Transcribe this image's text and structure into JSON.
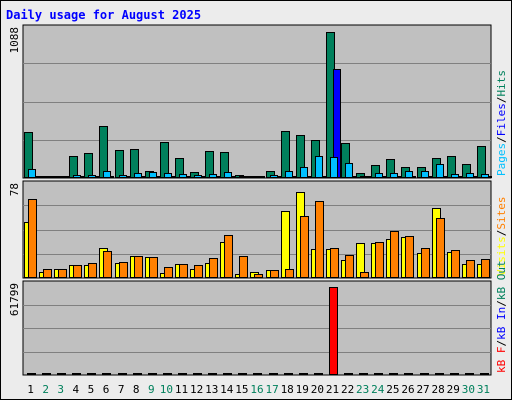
{
  "colors": {
    "pages": "#00c0ff",
    "files": "#0000ff",
    "hits": "#00805c",
    "visits": "#ffff00",
    "sites": "#ff8000",
    "kb": "#ff0000",
    "kb_out": "#00805c",
    "kb_in": "#0000ff",
    "frame": "#c0c0c0",
    "title": "#0000ff",
    "weekday_label": "#000000",
    "weekend_label": "#00805c"
  },
  "chart_data": {
    "type": "bar",
    "title": "Daily usage for August 2025",
    "categories": [
      "1",
      "2",
      "3",
      "4",
      "5",
      "6",
      "7",
      "8",
      "9",
      "10",
      "11",
      "12",
      "13",
      "14",
      "15",
      "16",
      "17",
      "18",
      "19",
      "20",
      "21",
      "22",
      "23",
      "24",
      "25",
      "26",
      "27",
      "28",
      "29",
      "30",
      "31"
    ],
    "weekend_days": [
      "2",
      "3",
      "9",
      "10",
      "16",
      "17",
      "23",
      "24",
      "30",
      "31"
    ],
    "panels": [
      {
        "name": "hits-files-pages",
        "axis_max_label": "1088",
        "ylim": [
          0,
          1088
        ],
        "legend": [
          {
            "text": "Pages",
            "color": "#00c0ff"
          },
          {
            "text": "/",
            "color": "#000000"
          },
          {
            "text": "Files",
            "color": "#0000ff"
          },
          {
            "text": "/",
            "color": "#000000"
          },
          {
            "text": "Hits",
            "color": "#00805c"
          }
        ],
        "series": [
          {
            "name": "Hits",
            "color": "#00805c",
            "values": [
              340,
              15,
              18,
              165,
              185,
              385,
              205,
              215,
              50,
              265,
              150,
              45,
              200,
              190,
              20,
              15,
              50,
              345,
              315,
              280,
              1080,
              260,
              35,
              95,
              140,
              80,
              80,
              145,
              165,
              100,
              235
            ]
          },
          {
            "name": "Files",
            "color": "#0000ff",
            "values": [
              5,
              2,
              2,
              5,
              5,
              10,
              5,
              5,
              10,
              5,
              5,
              5,
              5,
              5,
              3,
              2,
              3,
              10,
              5,
              15,
              810,
              10,
              3,
              5,
              5,
              5,
              5,
              5,
              5,
              5,
              5
            ]
          },
          {
            "name": "Pages",
            "color": "#00c0ff",
            "values": [
              70,
              15,
              15,
              20,
              25,
              50,
              25,
              40,
              45,
              35,
              30,
              25,
              30,
              45,
              15,
              10,
              25,
              50,
              80,
              165,
              155,
              110,
              15,
              40,
              40,
              50,
              55,
              100,
              30,
              40,
              30
            ]
          }
        ]
      },
      {
        "name": "visits-sites",
        "axis_max_label": "78",
        "ylim": [
          0,
          78
        ],
        "legend": [
          {
            "text": "Visits",
            "color": "#ffff00"
          },
          {
            "text": "/",
            "color": "#000000"
          },
          {
            "text": "Sites",
            "color": "#ff8000"
          }
        ],
        "series": [
          {
            "name": "Visits",
            "color": "#ffff00",
            "values": [
              48,
              5,
              8,
              11,
              11,
              26,
              13,
              19,
              18,
              4,
              12,
              8,
              13,
              31,
              3,
              5,
              7,
              57,
              74,
              25,
              25,
              15,
              30,
              30,
              33,
              35,
              21,
              60,
              22,
              12,
              12
            ]
          },
          {
            "name": "Sites",
            "color": "#ff8000",
            "values": [
              68,
              8,
              8,
              11,
              13,
              23,
              14,
              19,
              18,
              9,
              12,
              11,
              17,
              37,
              19,
              3,
              7,
              8,
              53,
              66,
              26,
              20,
              5,
              31,
              40,
              36,
              26,
              51,
              24,
              15,
              16
            ]
          }
        ]
      },
      {
        "name": "kbytes",
        "axis_max_label": "61799",
        "ylim": [
          0,
          61799
        ],
        "legend": [
          {
            "text": "kB F",
            "color": "#ff0000"
          },
          {
            "text": "/",
            "color": "#000000"
          },
          {
            "text": "kB In",
            "color": "#0000ff"
          },
          {
            "text": "/",
            "color": "#000000"
          },
          {
            "text": "kB Out",
            "color": "#00805c"
          }
        ],
        "series": [
          {
            "name": "kB F",
            "color": "#ff0000",
            "values": [
              50,
              50,
              50,
              50,
              50,
              50,
              50,
              50,
              50,
              50,
              50,
              50,
              50,
              50,
              50,
              50,
              50,
              50,
              50,
              50,
              61799,
              50,
              50,
              50,
              50,
              50,
              50,
              1500,
              50,
              50,
              50
            ]
          }
        ]
      }
    ]
  }
}
